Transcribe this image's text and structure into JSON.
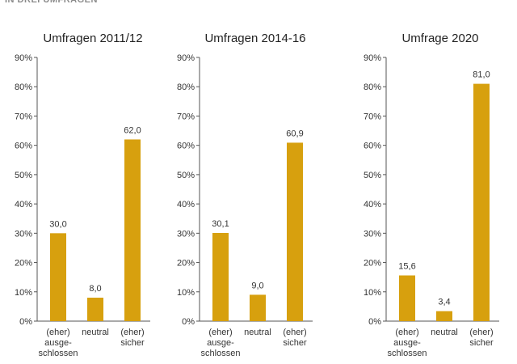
{
  "header": "IN DREI UMFRAGEN",
  "colors": {
    "bar": "#d7a00e",
    "axis": "#555555",
    "text": "#333333"
  },
  "chart_data": [
    {
      "type": "bar",
      "title": "Umfragen 2011/12",
      "categories": [
        "(eher) ausge- schlossen",
        "neutral",
        "(eher) sicher"
      ],
      "category_lines": [
        [
          "(eher)",
          "ausge-",
          "schlossen"
        ],
        [
          "neutral"
        ],
        [
          "(eher)",
          "sicher"
        ]
      ],
      "values": [
        30.0,
        8.0,
        62.0
      ],
      "value_labels": [
        "30,0",
        "8,0",
        "62,0"
      ],
      "ylim": [
        0,
        90
      ],
      "yticks": [
        "0%",
        "10%",
        "20%",
        "30%",
        "40%",
        "50%",
        "60%",
        "70%",
        "80%",
        "90%"
      ],
      "grid": false
    },
    {
      "type": "bar",
      "title": "Umfragen 2014-16",
      "categories": [
        "(eher) ausge- schlossen",
        "neutral",
        "(eher) sicher"
      ],
      "category_lines": [
        [
          "(eher)",
          "ausge-",
          "schlossen"
        ],
        [
          "neutral"
        ],
        [
          "(eher)",
          "sicher"
        ]
      ],
      "values": [
        30.1,
        9.0,
        60.9
      ],
      "value_labels": [
        "30,1",
        "9,0",
        "60,9"
      ],
      "ylim": [
        0,
        90
      ],
      "yticks": [
        "0%",
        "10%",
        "20%",
        "30%",
        "40%",
        "50%",
        "60%",
        "70%",
        "80%",
        "90%"
      ],
      "grid": false
    },
    {
      "type": "bar",
      "title": "Umfrage 2020",
      "categories": [
        "(eher) ausge- schlossen",
        "neutral",
        "(eher) sicher"
      ],
      "category_lines": [
        [
          "(eher)",
          "ausge-",
          "schlossen"
        ],
        [
          "neutral"
        ],
        [
          "(eher)",
          "sicher"
        ]
      ],
      "values": [
        15.6,
        3.4,
        81.0
      ],
      "value_labels": [
        "15,6",
        "3,4",
        "81,0"
      ],
      "ylim": [
        0,
        90
      ],
      "yticks": [
        "0%",
        "10%",
        "20%",
        "30%",
        "40%",
        "50%",
        "60%",
        "70%",
        "80%",
        "90%"
      ],
      "grid": false
    }
  ]
}
